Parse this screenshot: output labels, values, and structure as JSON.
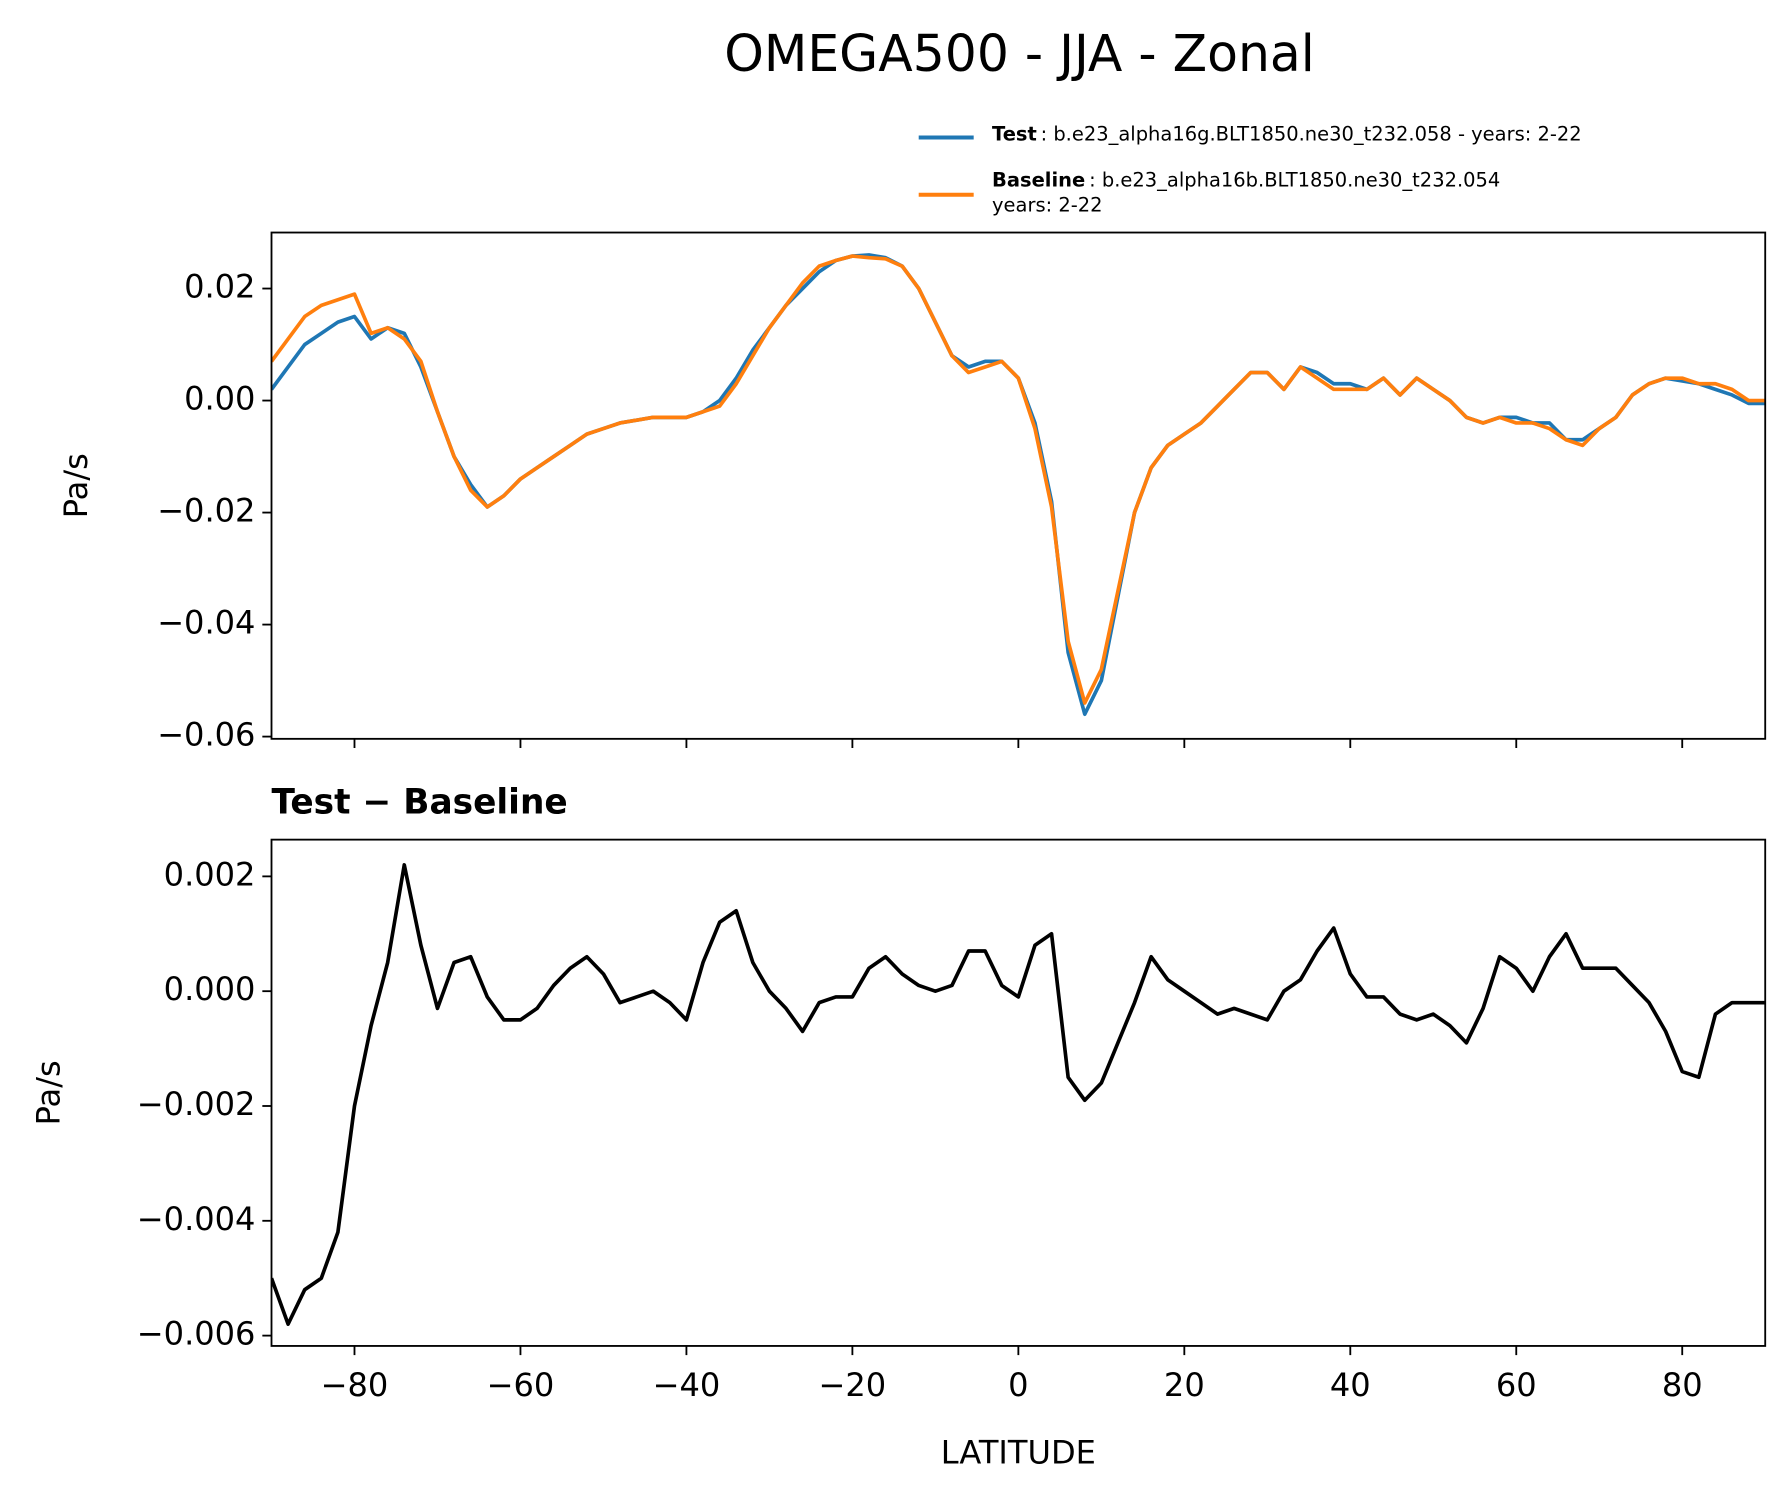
{
  "chart_data": [
    {
      "type": "line",
      "title": "OMEGA500 - JJA - Zonal",
      "ylabel": "Pa/s",
      "x": [
        -90,
        -88,
        -86,
        -84,
        -82,
        -80,
        -78,
        -76,
        -74,
        -72,
        -70,
        -68,
        -66,
        -64,
        -62,
        -60,
        -58,
        -56,
        -54,
        -52,
        -50,
        -48,
        -46,
        -44,
        -42,
        -40,
        -38,
        -36,
        -34,
        -32,
        -30,
        -28,
        -26,
        -24,
        -22,
        -20,
        -18,
        -16,
        -14,
        -12,
        -10,
        -8,
        -6,
        -4,
        -2,
        0,
        2,
        4,
        6,
        8,
        10,
        12,
        14,
        16,
        18,
        20,
        22,
        24,
        26,
        28,
        30,
        32,
        34,
        36,
        38,
        40,
        42,
        44,
        46,
        48,
        50,
        52,
        54,
        56,
        58,
        60,
        62,
        64,
        66,
        68,
        70,
        72,
        74,
        76,
        78,
        80,
        82,
        84,
        86,
        88,
        90
      ],
      "series": [
        {
          "name": "Test",
          "description": [
            ": b.e23_alpha16g.BLT1850.ne30_t232.058 - years: 2-22"
          ],
          "color": "#1f77b4",
          "values": [
            0.002,
            0.006,
            0.01,
            0.012,
            0.014,
            0.015,
            0.011,
            0.013,
            0.012,
            0.006,
            -0.002,
            -0.01,
            -0.015,
            -0.019,
            -0.017,
            -0.014,
            -0.012,
            -0.01,
            -0.008,
            -0.006,
            -0.005,
            -0.004,
            -0.0035,
            -0.003,
            -0.003,
            -0.003,
            -0.002,
            0.0,
            0.004,
            0.009,
            0.013,
            0.017,
            0.02,
            0.023,
            0.025,
            0.0258,
            0.026,
            0.0255,
            0.024,
            0.02,
            0.014,
            0.008,
            0.006,
            0.007,
            0.007,
            0.004,
            -0.004,
            -0.018,
            -0.045,
            -0.056,
            -0.05,
            -0.035,
            -0.02,
            -0.012,
            -0.008,
            -0.006,
            -0.004,
            -0.001,
            0.002,
            0.005,
            0.005,
            0.002,
            0.006,
            0.005,
            0.003,
            0.003,
            0.002,
            0.004,
            0.001,
            0.004,
            0.002,
            0.0,
            -0.003,
            -0.004,
            -0.003,
            -0.003,
            -0.004,
            -0.004,
            -0.007,
            -0.007,
            -0.005,
            -0.003,
            0.001,
            0.003,
            0.004,
            0.0035,
            0.003,
            0.002,
            0.001,
            -0.0005,
            -0.0005
          ]
        },
        {
          "name": "Baseline",
          "description": [
            ": b.e23_alpha16b.BLT1850.ne30_t232.054",
            "years: 2-22"
          ],
          "color": "#ff7f0e",
          "values": [
            0.007,
            0.011,
            0.015,
            0.017,
            0.018,
            0.019,
            0.012,
            0.013,
            0.011,
            0.007,
            -0.002,
            -0.01,
            -0.016,
            -0.019,
            -0.017,
            -0.014,
            -0.012,
            -0.01,
            -0.008,
            -0.006,
            -0.005,
            -0.004,
            -0.0035,
            -0.003,
            -0.003,
            -0.003,
            -0.002,
            -0.001,
            0.003,
            0.008,
            0.013,
            0.017,
            0.021,
            0.024,
            0.025,
            0.0258,
            0.0255,
            0.0253,
            0.024,
            0.02,
            0.014,
            0.008,
            0.005,
            0.006,
            0.007,
            0.004,
            -0.005,
            -0.019,
            -0.043,
            -0.054,
            -0.048,
            -0.034,
            -0.02,
            -0.012,
            -0.008,
            -0.006,
            -0.004,
            -0.001,
            0.002,
            0.005,
            0.005,
            0.002,
            0.006,
            0.004,
            0.002,
            0.002,
            0.002,
            0.004,
            0.001,
            0.004,
            0.002,
            0.0,
            -0.003,
            -0.004,
            -0.003,
            -0.004,
            -0.004,
            -0.005,
            -0.007,
            -0.008,
            -0.005,
            -0.003,
            0.001,
            0.003,
            0.004,
            0.004,
            0.003,
            0.003,
            0.002,
            0.0,
            0.0
          ]
        }
      ],
      "xlim": [
        -90,
        90
      ],
      "xticks": [
        -80,
        -60,
        -40,
        -20,
        0,
        20,
        40,
        60,
        80
      ],
      "ylim": [
        -0.0604,
        0.03
      ],
      "yticks": [
        0.02,
        {
          "value": 0,
          "label": "0.00"
        },
        {
          "value": -0.02,
          "label": "−0.02"
        },
        {
          "value": -0.04,
          "label": "−0.04"
        },
        {
          "value": -0.06,
          "label": "−0.06"
        }
      ],
      "legend": "upper right"
    },
    {
      "type": "line",
      "title": "Test − Baseline",
      "ylabel": "Pa/s",
      "xlabel": "LATITUDE",
      "x": [
        -90,
        -88,
        -86,
        -84,
        -82,
        -80,
        -78,
        -76,
        -74,
        -72,
        -70,
        -68,
        -66,
        -64,
        -62,
        -60,
        -58,
        -56,
        -54,
        -52,
        -50,
        -48,
        -46,
        -44,
        -42,
        -40,
        -38,
        -36,
        -34,
        -32,
        -30,
        -28,
        -26,
        -24,
        -22,
        -20,
        -18,
        -16,
        -14,
        -12,
        -10,
        -8,
        -6,
        -4,
        -2,
        0,
        2,
        4,
        6,
        8,
        10,
        12,
        14,
        16,
        18,
        20,
        22,
        24,
        26,
        28,
        30,
        32,
        34,
        36,
        38,
        40,
        42,
        44,
        46,
        48,
        50,
        52,
        54,
        56,
        58,
        60,
        62,
        64,
        66,
        68,
        70,
        72,
        74,
        76,
        78,
        80,
        82,
        84,
        86,
        88,
        90
      ],
      "series": [
        {
          "color": "#000000",
          "values": [
            -0.005,
            -0.0058,
            -0.0052,
            -0.005,
            -0.0042,
            -0.002,
            -0.0006,
            0.0005,
            0.0022,
            0.0008,
            -0.0003,
            0.0005,
            0.0006,
            -0.0001,
            -0.0005,
            -0.0005,
            -0.0003,
            0.0001,
            0.0004,
            0.0006,
            0.0003,
            -0.0002,
            -0.0001,
            0.0,
            -0.0002,
            -0.0005,
            0.0005,
            0.0012,
            0.0014,
            0.0005,
            0.0,
            -0.0003,
            -0.0007,
            -0.0002,
            -0.0001,
            -0.0001,
            0.0004,
            0.0006,
            0.0003,
            0.0001,
            0.0,
            0.0001,
            0.0007,
            0.0007,
            0.0001,
            -0.0001,
            0.0008,
            0.001,
            -0.0015,
            -0.0019,
            -0.0016,
            -0.0009,
            -0.0002,
            0.0006,
            0.0002,
            0.0,
            -0.0002,
            -0.0004,
            -0.0003,
            -0.0004,
            -0.0005,
            0.0,
            0.0002,
            0.0007,
            0.0011,
            0.0003,
            -0.0001,
            -0.0001,
            -0.0004,
            -0.0005,
            -0.0004,
            -0.0006,
            -0.0009,
            -0.0003,
            0.0006,
            0.0004,
            0.0,
            0.0006,
            0.001,
            0.0004,
            0.0004,
            0.0004,
            0.0001,
            -0.0002,
            -0.0007,
            -0.0014,
            -0.0015,
            -0.0004,
            -0.0002,
            -0.0002,
            -0.0002
          ]
        }
      ],
      "xlim": [
        -90,
        90
      ],
      "xticks": [
        {
          "value": -80,
          "label": "−80"
        },
        {
          "value": -60,
          "label": "−60"
        },
        {
          "value": -40,
          "label": "−40"
        },
        {
          "value": -20,
          "label": "−20"
        },
        0,
        20,
        40,
        60,
        80
      ],
      "ylim": [
        -0.00618,
        0.00264
      ],
      "yticks": [
        0.002,
        {
          "value": 0,
          "label": "0.000"
        },
        {
          "value": -0.002,
          "label": "−0.002"
        },
        {
          "value": -0.004,
          "label": "−0.004"
        },
        {
          "value": -0.006,
          "label": "−0.006"
        }
      ]
    }
  ]
}
